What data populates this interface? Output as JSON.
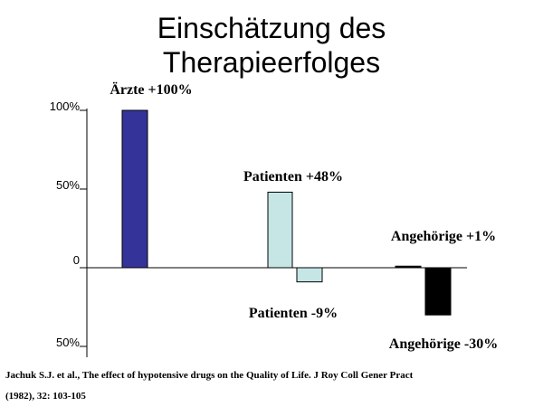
{
  "chart_data": {
    "type": "bar",
    "title_lines": [
      "Einschätzung des",
      "Therapieerfolges"
    ],
    "ylim": [
      -50,
      100
    ],
    "yticks": [
      {
        "value": 100,
        "label": "100%"
      },
      {
        "value": 50,
        "label": "50%"
      },
      {
        "value": 0,
        "label": "0"
      },
      {
        "value": -50,
        "label": "50%"
      }
    ],
    "bars": [
      {
        "group": "Ärzte",
        "value": 100,
        "label": "Ärzte +100%",
        "color": "#333399"
      },
      {
        "group": "Patienten",
        "value": 48,
        "label": "Patienten +48%",
        "color": "#c6e6e6"
      },
      {
        "group": "Patienten",
        "value": -9,
        "label": "Patienten -9%",
        "color": "#c6e6e6"
      },
      {
        "group": "Angehörige",
        "value": 1,
        "label": "Angehörige +1%",
        "color": "#000000"
      },
      {
        "group": "Angehörige",
        "value": -30,
        "label": "Angehörige -30%",
        "color": "#000000"
      }
    ],
    "grid": false,
    "legend": "none"
  },
  "reference": {
    "line1": "Jachuk S.J. et al., The effect of hypotensive drugs on the Quality of Life. J Roy Coll Gener Pract",
    "line2": "(1982), 32: 103-105"
  }
}
